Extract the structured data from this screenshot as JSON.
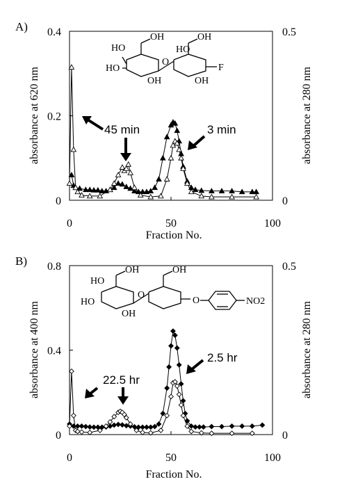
{
  "chart_data": [
    {
      "type": "line",
      "panel_label": "A)",
      "xlabel": "Fraction No.",
      "ylabel_left": "absorbance at 620 nm",
      "ylabel_right": "absorbance at 280 nm",
      "xlim": [
        0,
        100
      ],
      "ylim_left": [
        0,
        0.4
      ],
      "ylim_right": [
        0,
        0.5
      ],
      "x_ticks": [
        "0",
        "50",
        "100"
      ],
      "y_ticks_left": [
        "0",
        "0.2",
        "0.4"
      ],
      "y_ticks_right": [
        "0",
        "0.5"
      ],
      "grid": false,
      "annotations": [
        "45 min",
        "3 min"
      ],
      "structure_labels": [
        "HO",
        "OH",
        "HO",
        "OH",
        "O",
        "HO",
        "OH",
        "OH",
        "F"
      ],
      "series": [
        {
          "marker": "filled-triangle",
          "color": "#000000",
          "x": [
            1,
            2,
            3,
            5,
            8,
            10,
            12,
            14,
            16,
            18,
            20,
            22,
            24,
            26,
            28,
            30,
            32,
            34,
            36,
            38,
            40,
            42,
            44,
            46,
            48,
            50,
            51,
            52,
            53,
            54,
            55,
            56,
            58,
            60,
            62,
            65,
            70,
            75,
            80,
            85,
            90,
            92
          ],
          "y": [
            0.06,
            0.035,
            0.03,
            0.028,
            0.025,
            0.025,
            0.024,
            0.024,
            0.022,
            0.022,
            0.025,
            0.03,
            0.04,
            0.038,
            0.032,
            0.028,
            0.022,
            0.02,
            0.02,
            0.02,
            0.022,
            0.03,
            0.05,
            0.1,
            0.15,
            0.178,
            0.185,
            0.182,
            0.165,
            0.14,
            0.11,
            0.08,
            0.045,
            0.03,
            0.025,
            0.023,
            0.022,
            0.022,
            0.022,
            0.02,
            0.02,
            0.02
          ]
        },
        {
          "marker": "open-triangle",
          "color": "#000000",
          "x": [
            0,
            1,
            2,
            3,
            4,
            6,
            10,
            15,
            20,
            22,
            24,
            26,
            27,
            28,
            29,
            30,
            32,
            35,
            40,
            45,
            48,
            50,
            51,
            52,
            53,
            54,
            55,
            56,
            58,
            60,
            65,
            70,
            80,
            92
          ],
          "y": [
            0.04,
            0.315,
            0.12,
            0.03,
            0.02,
            0.012,
            0.01,
            0.01,
            0.025,
            0.04,
            0.06,
            0.078,
            0.07,
            0.075,
            0.085,
            0.065,
            0.03,
            0.012,
            0.008,
            0.01,
            0.05,
            0.1,
            0.13,
            0.14,
            0.135,
            0.12,
            0.1,
            0.075,
            0.04,
            0.02,
            0.01,
            0.008,
            0.008,
            0.008
          ]
        }
      ]
    },
    {
      "type": "line",
      "panel_label": "B)",
      "xlabel": "Fraction No.",
      "ylabel_left": "absorbance at 400 nm",
      "ylabel_right": "absorbance at 280 nm",
      "xlim": [
        0,
        100
      ],
      "ylim_left": [
        0,
        0.8
      ],
      "ylim_right": [
        0,
        0.5
      ],
      "x_ticks": [
        "0",
        "50",
        "100"
      ],
      "y_ticks_left": [
        "0",
        "0.4",
        "0.8"
      ],
      "y_ticks_right": [
        "0",
        "0.5"
      ],
      "grid": false,
      "annotations": [
        "22.5 hr",
        "2.5 hr"
      ],
      "structure_labels": [
        "HO",
        "OH",
        "HO",
        "OH",
        "O",
        "OH",
        "O",
        "NO2"
      ],
      "series": [
        {
          "marker": "filled-diamond",
          "color": "#000000",
          "x": [
            0,
            2,
            4,
            6,
            8,
            10,
            12,
            14,
            16,
            18,
            20,
            22,
            24,
            26,
            28,
            30,
            32,
            34,
            36,
            38,
            40,
            42,
            44,
            46,
            48,
            49,
            50,
            51,
            52,
            53,
            54,
            55,
            56,
            57,
            58,
            60,
            62,
            64,
            66,
            70,
            75,
            80,
            85,
            90,
            95
          ],
          "y": [
            0.05,
            0.04,
            0.04,
            0.04,
            0.038,
            0.036,
            0.035,
            0.035,
            0.035,
            0.036,
            0.04,
            0.045,
            0.048,
            0.046,
            0.042,
            0.04,
            0.037,
            0.035,
            0.035,
            0.035,
            0.035,
            0.038,
            0.05,
            0.1,
            0.22,
            0.32,
            0.42,
            0.49,
            0.47,
            0.41,
            0.33,
            0.24,
            0.16,
            0.1,
            0.065,
            0.04,
            0.036,
            0.036,
            0.036,
            0.038,
            0.038,
            0.04,
            0.04,
            0.04,
            0.045
          ]
        },
        {
          "marker": "open-diamond",
          "color": "#000000",
          "x": [
            0,
            1,
            2,
            3,
            4,
            6,
            10,
            15,
            18,
            20,
            22,
            24,
            25,
            26,
            27,
            28,
            30,
            33,
            36,
            40,
            45,
            48,
            50,
            51,
            52,
            53,
            54,
            55,
            56,
            58,
            60,
            65,
            70,
            80,
            90
          ],
          "y": [
            0.04,
            0.3,
            0.09,
            0.02,
            0.015,
            0.012,
            0.01,
            0.02,
            0.04,
            0.06,
            0.085,
            0.105,
            0.11,
            0.105,
            0.095,
            0.08,
            0.05,
            0.02,
            0.01,
            0.008,
            0.02,
            0.09,
            0.18,
            0.245,
            0.25,
            0.23,
            0.19,
            0.14,
            0.09,
            0.04,
            0.015,
            0.008,
            0.006,
            0.006,
            0.006
          ]
        }
      ]
    }
  ]
}
